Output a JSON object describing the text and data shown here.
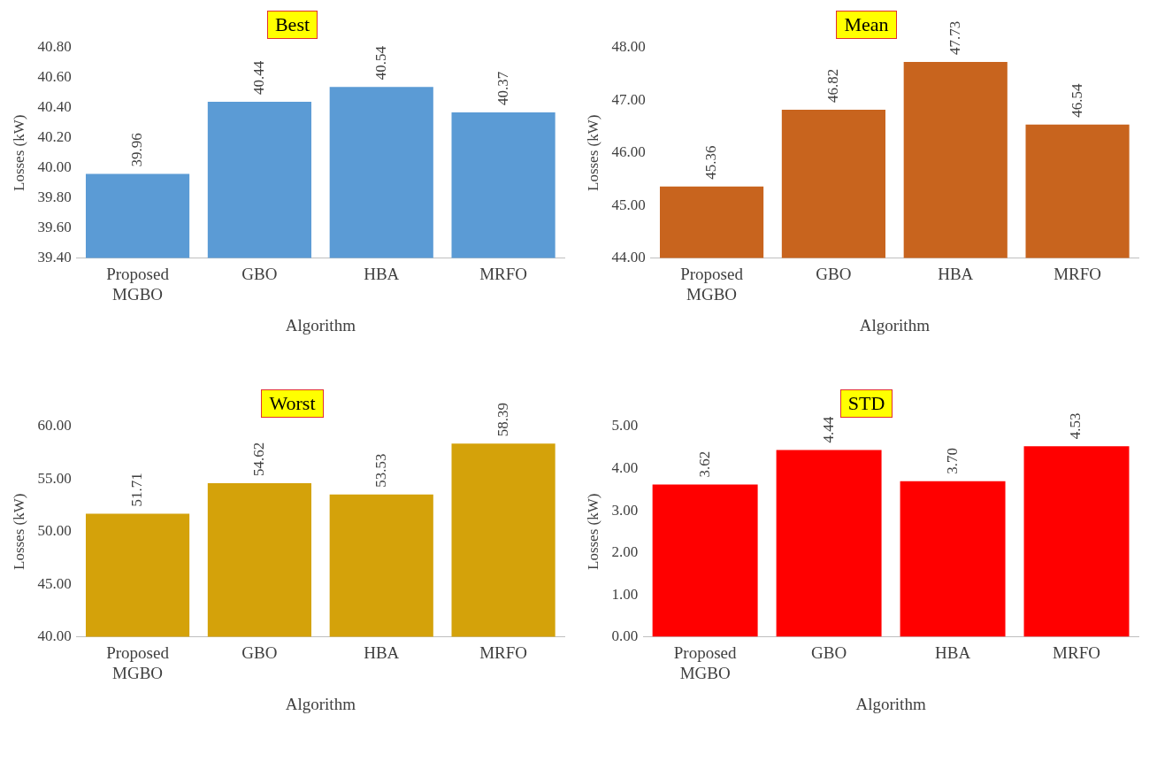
{
  "chart_data": [
    {
      "type": "bar",
      "title": "Best",
      "xlabel": "Algorithm",
      "ylabel": "Losses (kW)",
      "categories": [
        "Proposed MGBO",
        "GBO",
        "HBA",
        "MRFO"
      ],
      "values": [
        39.96,
        40.44,
        40.54,
        40.37
      ],
      "value_labels": [
        "39.96",
        "40.44",
        "40.54",
        "40.37"
      ],
      "color": "#5b9bd5",
      "ylim": [
        39.4,
        40.8
      ],
      "yticks": [
        {
          "value": 39.4,
          "label": "39.40"
        },
        {
          "value": 39.6,
          "label": "39.60"
        },
        {
          "value": 39.8,
          "label": "39.80"
        },
        {
          "value": 40.0,
          "label": "40.00"
        },
        {
          "value": 40.2,
          "label": "40.20"
        },
        {
          "value": 40.4,
          "label": "40.40"
        },
        {
          "value": 40.6,
          "label": "40.60"
        },
        {
          "value": 40.8,
          "label": "40.80"
        }
      ],
      "grid": false,
      "legend": false
    },
    {
      "type": "bar",
      "title": "Mean",
      "xlabel": "Algorithm",
      "ylabel": "Losses (kW)",
      "categories": [
        "Proposed MGBO",
        "GBO",
        "HBA",
        "MRFO"
      ],
      "values": [
        45.36,
        46.82,
        47.73,
        46.54
      ],
      "value_labels": [
        "45.36",
        "46.82",
        "47.73",
        "46.54"
      ],
      "color": "#c8641e",
      "ylim": [
        44,
        48
      ],
      "yticks": [
        {
          "value": 44,
          "label": "44.00"
        },
        {
          "value": 45,
          "label": "45.00"
        },
        {
          "value": 46,
          "label": "46.00"
        },
        {
          "value": 47,
          "label": "47.00"
        },
        {
          "value": 48,
          "label": "48.00"
        }
      ],
      "grid": false,
      "legend": false
    },
    {
      "type": "bar",
      "title": "Worst",
      "xlabel": "Algorithm",
      "ylabel": "Losses (kW)",
      "categories": [
        "Proposed MGBO",
        "GBO",
        "HBA",
        "MRFO"
      ],
      "values": [
        51.71,
        54.62,
        53.53,
        58.39
      ],
      "value_labels": [
        "51.71",
        "54.62",
        "53.53",
        "58.39"
      ],
      "color": "#d4a20a",
      "ylim": [
        40,
        60
      ],
      "yticks": [
        {
          "value": 40,
          "label": "40.00"
        },
        {
          "value": 45,
          "label": "45.00"
        },
        {
          "value": 50,
          "label": "50.00"
        },
        {
          "value": 55,
          "label": "55.00"
        },
        {
          "value": 60,
          "label": "60.00"
        }
      ],
      "grid": false,
      "legend": false
    },
    {
      "type": "bar",
      "title": "STD",
      "xlabel": "Algorithm",
      "ylabel": "Losses (kW)",
      "categories": [
        "Proposed MGBO",
        "GBO",
        "HBA",
        "MRFO"
      ],
      "values": [
        3.62,
        4.44,
        3.7,
        4.53
      ],
      "value_labels": [
        "3.62",
        "4.44",
        "3.70",
        "4.53"
      ],
      "color": "#ff0000",
      "ylim": [
        0,
        5
      ],
      "yticks": [
        {
          "value": 0,
          "label": "0.00"
        },
        {
          "value": 1,
          "label": "1.00"
        },
        {
          "value": 2,
          "label": "2.00"
        },
        {
          "value": 3,
          "label": "3.00"
        },
        {
          "value": 4,
          "label": "4.00"
        },
        {
          "value": 5,
          "label": "5.00"
        }
      ],
      "grid": false,
      "legend": false
    }
  ]
}
